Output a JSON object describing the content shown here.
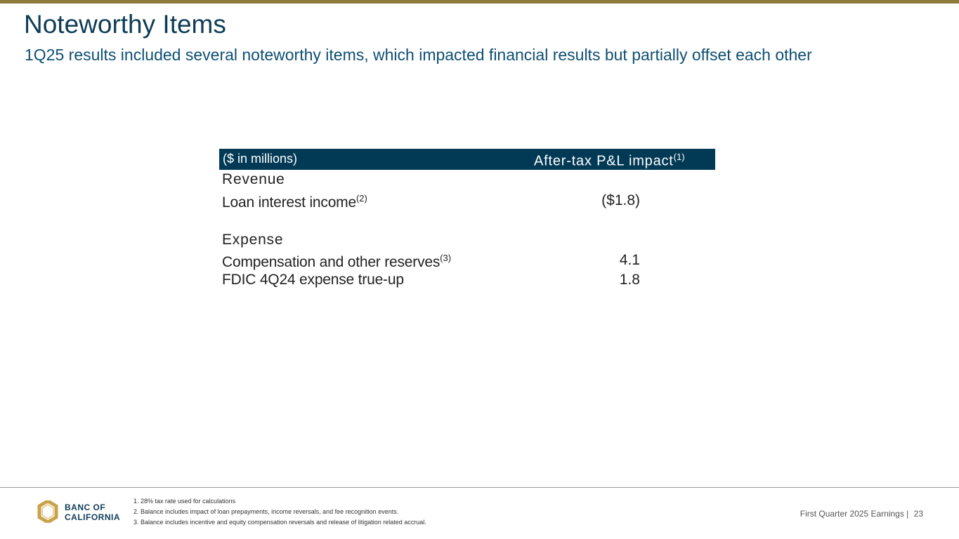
{
  "header": {
    "title": "Noteworthy Items",
    "subtitle": "1Q25 results included several noteworthy items, which impacted financial results but partially offset each other"
  },
  "table": {
    "unit_label": "($ in millions)",
    "value_header": "After-tax P&L impact",
    "value_header_note": "(1)",
    "sections": [
      {
        "name": "Revenue",
        "rows": [
          {
            "label": "Loan interest income",
            "note": "(2)",
            "value": "($1.8)"
          }
        ]
      },
      {
        "name": "Expense",
        "rows": [
          {
            "label": "Compensation and other reserves",
            "note": "(3)",
            "value": "4.1"
          },
          {
            "label": "FDIC 4Q24 expense true-up",
            "note": "",
            "value": "1.8"
          }
        ]
      }
    ]
  },
  "footer": {
    "logo_line1": "BANC OF",
    "logo_line2": "CALIFORNIA",
    "footnotes": [
      "1.  28% tax rate used for calculations",
      "2.  Balance includes impact of loan prepayments, income reversals, and fee recognition events.",
      "3.  Balance includes incentive and equity compensation reversals and release of litigation related accrual."
    ],
    "report_label": "First Quarter 2025 Earnings |",
    "page_number": "23"
  },
  "colors": {
    "accent_bar": "#8c7a3a",
    "title": "#0e3c55",
    "table_header_bg": "#023a55"
  }
}
